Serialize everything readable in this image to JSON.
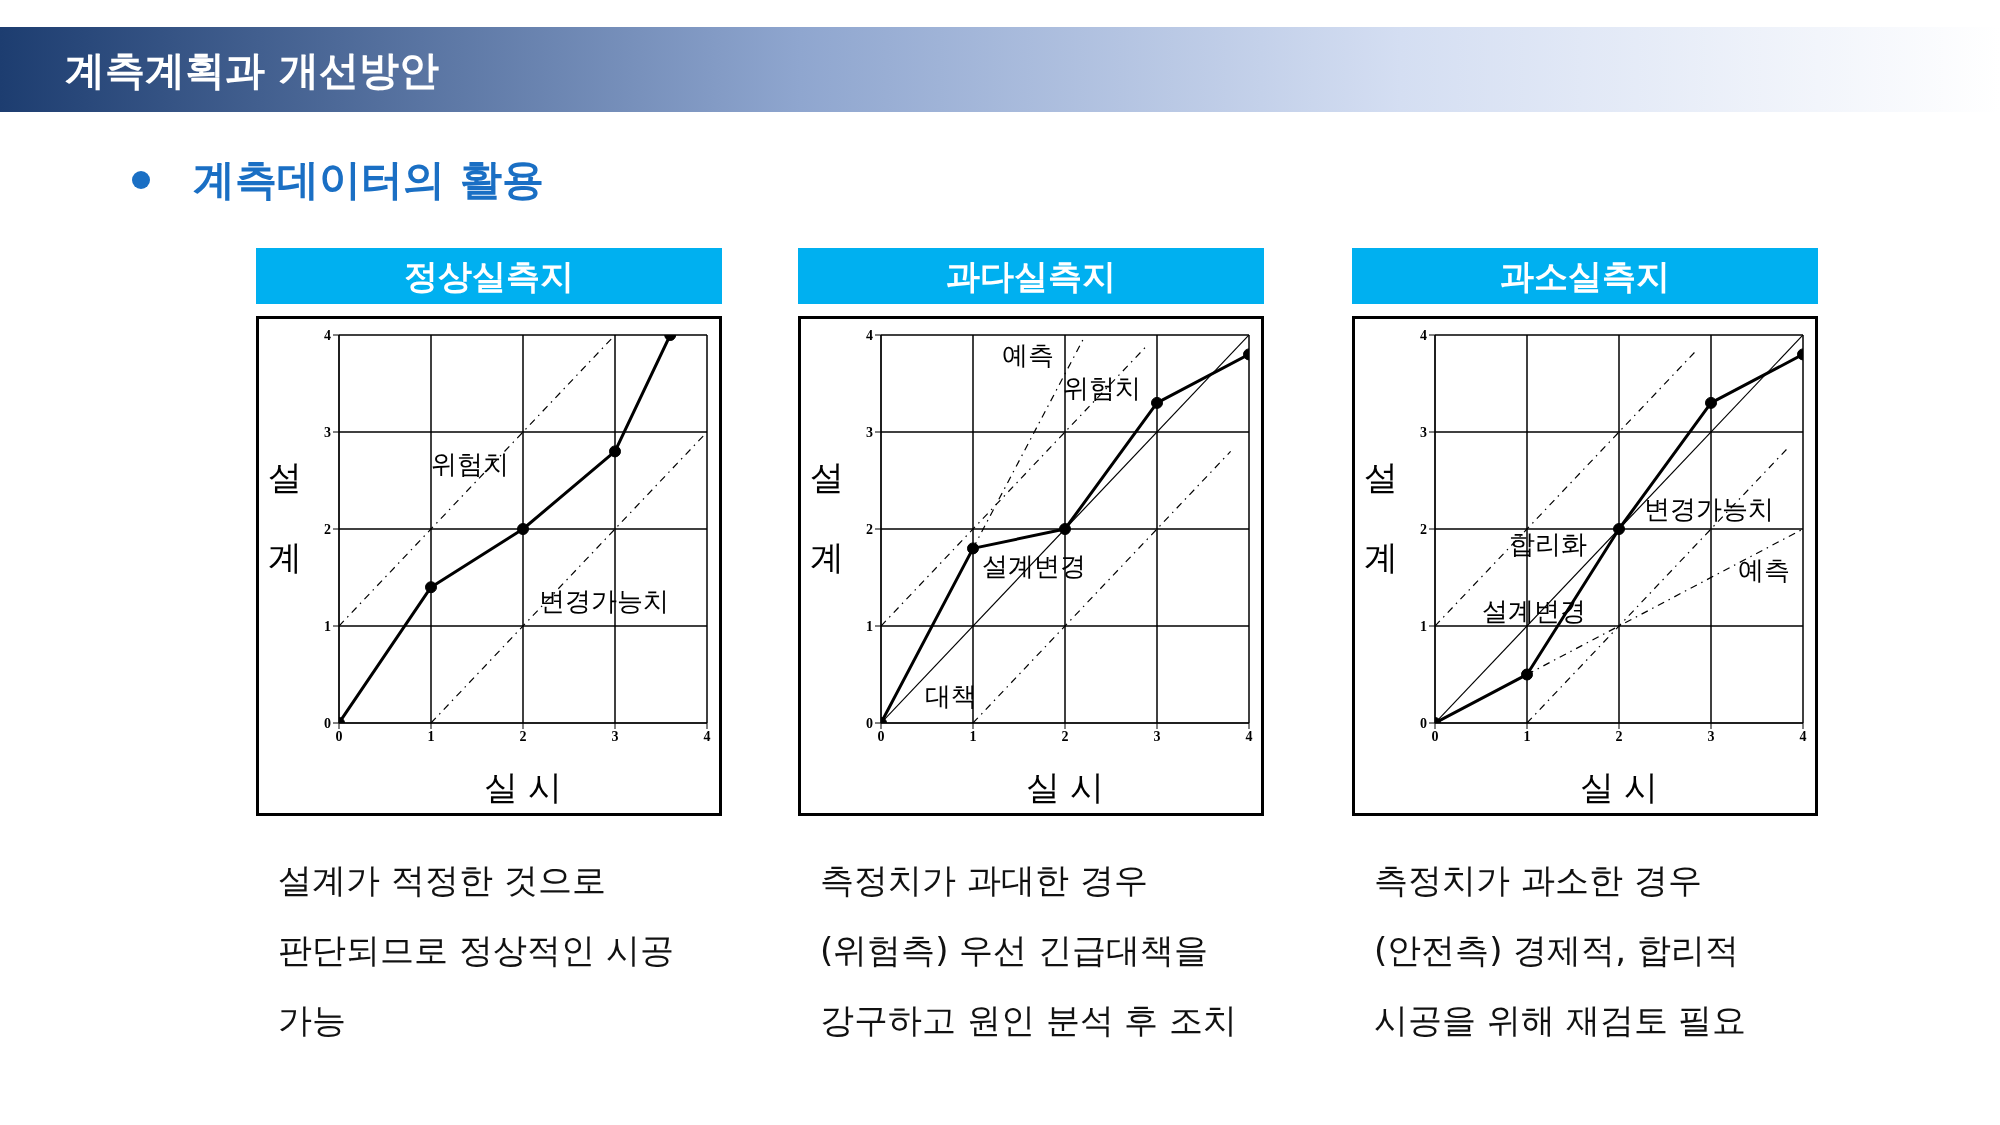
{
  "chart_data": [
    {
      "type": "other",
      "title": "계측계획과 개선방안",
      "subtitle": "계측데이터의 활용"
    },
    {
      "type": "line",
      "title": "정상실측지",
      "xlabel": "실    시",
      "ylabel": "설계",
      "xlim": [
        0,
        4
      ],
      "ylim": [
        0,
        4
      ],
      "xticks": [
        0,
        1,
        2,
        3,
        4
      ],
      "yticks": [
        0,
        1,
        2,
        3,
        4
      ],
      "grid": true,
      "x": [
        0,
        1,
        2,
        3,
        3.6
      ],
      "series": [
        {
          "color": "#000000",
          "values": [
            0,
            1.4,
            2,
            2.8,
            4
          ],
          "marker": "circle",
          "line_style": "solid"
        },
        {
          "type": "line",
          "color": "#000000",
          "x": [
            0,
            3
          ],
          "values": [
            1,
            4
          ],
          "marker": "none",
          "line_style": "dashed"
        },
        {
          "type": "line",
          "color": "#000000",
          "x": [
            1,
            4
          ],
          "values": [
            0,
            3
          ],
          "marker": "none",
          "line_style": "dashed"
        }
      ],
      "annotations": [
        "위험치",
        "변경가능치",
        "설계가 적정한 것으로\n판단되므로 정상적인 시공\n가능"
      ]
    },
    {
      "type": "line",
      "title": "과다실측지",
      "xlabel": "실    시",
      "ylabel": "설계",
      "xlim": [
        0,
        4
      ],
      "ylim": [
        0,
        4
      ],
      "xticks": [
        0,
        1,
        2,
        3,
        4
      ],
      "yticks": [
        0,
        1,
        2,
        3,
        4
      ],
      "grid": true,
      "x": [
        0,
        1,
        2,
        3,
        4
      ],
      "series": [
        {
          "color": "#000000",
          "values": [
            0,
            1.8,
            2,
            3.3,
            3.8
          ],
          "marker": "circle",
          "line_style": "solid"
        },
        {
          "type": "line",
          "color": "#000000",
          "x": [
            0,
            4
          ],
          "values": [
            0,
            4
          ],
          "marker": "none",
          "line_style": "solid"
        },
        {
          "type": "line",
          "color": "#000000",
          "x": [
            0,
            2.9
          ],
          "values": [
            1,
            3.9
          ],
          "marker": "none",
          "line_style": "dashed"
        },
        {
          "type": "line",
          "color": "#000000",
          "x": [
            1,
            3.8
          ],
          "values": [
            0,
            2.8
          ],
          "marker": "none",
          "line_style": "dashed"
        },
        {
          "type": "line",
          "color": "#000000",
          "x": [
            1,
            2.2
          ],
          "values": [
            1.8,
            3.96
          ],
          "marker": "none",
          "line_style": "dashed"
        }
      ],
      "annotations": [
        "예측",
        "위험치",
        "설계변경",
        "대책",
        "측정치가 과대한 경우\n(위험측) 우선 긴급대책을\n강구하고 원인 분석 후 조치"
      ]
    },
    {
      "type": "line",
      "title": "과소실측지",
      "xlabel": "실    시",
      "ylabel": "설계",
      "xlim": [
        0,
        4
      ],
      "ylim": [
        0,
        4
      ],
      "xticks": [
        0,
        1,
        2,
        3,
        4
      ],
      "yticks": [
        0,
        1,
        2,
        3,
        4
      ],
      "grid": true,
      "x": [
        0,
        1,
        2,
        3,
        4
      ],
      "series": [
        {
          "color": "#000000",
          "values": [
            0,
            0.5,
            2,
            3.3,
            3.8
          ],
          "marker": "circle",
          "line_style": "solid"
        },
        {
          "type": "line",
          "color": "#000000",
          "x": [
            0,
            4
          ],
          "values": [
            0,
            4
          ],
          "marker": "none",
          "line_style": "solid"
        },
        {
          "type": "line",
          "color": "#000000",
          "x": [
            0,
            2.85
          ],
          "values": [
            1,
            3.85
          ],
          "marker": "none",
          "line_style": "dashed"
        },
        {
          "type": "line",
          "color": "#000000",
          "x": [
            1,
            3.85
          ],
          "values": [
            0,
            2.85
          ],
          "marker": "none",
          "line_style": "dashed"
        },
        {
          "type": "line",
          "color": "#000000",
          "x": [
            1,
            4
          ],
          "values": [
            0.5,
            2
          ],
          "marker": "none",
          "line_style": "dashed"
        }
      ],
      "annotations": [
        "변경가능치",
        "합리화",
        "예측",
        "설계변경",
        "측정치가 과소한 경우\n(안전측) 경제적, 합리적\n시공을 위해 재검토 필요"
      ]
    }
  ]
}
